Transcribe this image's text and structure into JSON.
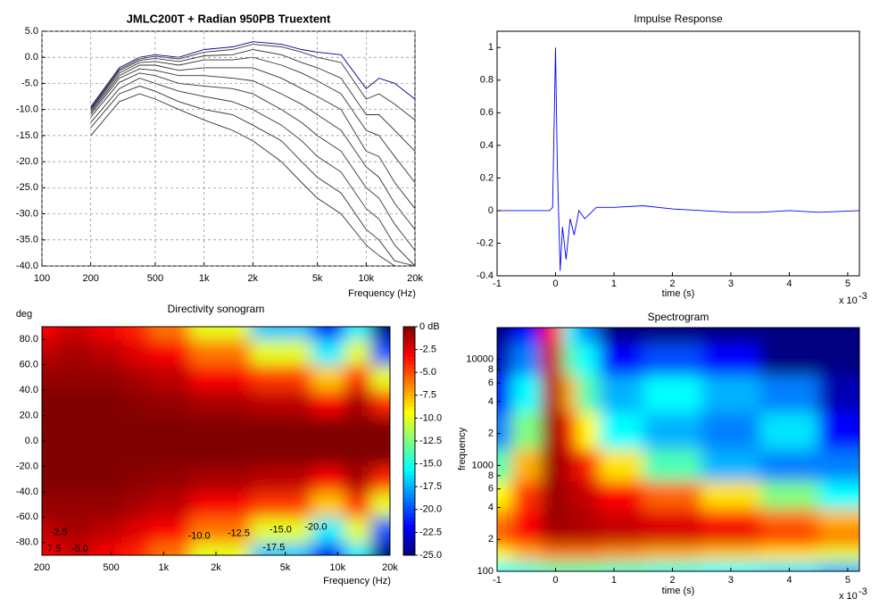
{
  "chart_data": [
    {
      "type": "line",
      "title": "JMLC200T + Radian 950PB Truextent",
      "x_label": "Frequency (Hz)",
      "xlog": true,
      "grid": true,
      "xlim": [
        100,
        20000
      ],
      "xticks": [
        100,
        200,
        500,
        {
          "value": 1000,
          "label": "1k"
        },
        {
          "value": 2000,
          "label": "2k"
        },
        {
          "value": 5000,
          "label": "5k"
        },
        {
          "value": 10000,
          "label": "10k"
        },
        {
          "value": 20000,
          "label": "20k"
        }
      ],
      "ylim": [
        -40,
        5
      ],
      "yticks": [
        {
          "value": 5,
          "label": "5.0"
        },
        {
          "value": 0,
          "label": "0.0"
        },
        {
          "value": -5,
          "label": "-5.0"
        },
        {
          "value": -10,
          "label": "-10.0"
        },
        {
          "value": -15,
          "label": "-15.0"
        },
        {
          "value": -20,
          "label": "-20.0"
        },
        {
          "value": -25,
          "label": "-25.0"
        },
        {
          "value": -30,
          "label": "-30.0"
        },
        {
          "value": -35,
          "label": "-35.0"
        },
        {
          "value": -40,
          "label": "-40.0"
        }
      ],
      "x": [
        200,
        300,
        400,
        500,
        700,
        1000,
        1500,
        2000,
        3000,
        4000,
        5000,
        7000,
        10000,
        12000,
        15000,
        20000
      ],
      "series": [
        {
          "color": "#00008b",
          "values": [
            -9.5,
            -2,
            0,
            0.5,
            0,
            1.5,
            2,
            3,
            2.5,
            1.5,
            1,
            0.5,
            -6,
            -4,
            -5,
            -8
          ]
        },
        {
          "color": "#333333",
          "values": [
            -9.8,
            -2.3,
            -0.3,
            0.2,
            -0.3,
            1,
            1.5,
            2.5,
            2,
            1,
            0,
            -1,
            -8,
            -7,
            -9,
            -12
          ]
        },
        {
          "color": "#333333",
          "values": [
            -10,
            -2.6,
            -0.6,
            -0.2,
            -0.8,
            0.3,
            0.5,
            1.5,
            0.5,
            -1,
            -2,
            -4,
            -11,
            -11,
            -14,
            -18
          ]
        },
        {
          "color": "#333333",
          "values": [
            -10.3,
            -3,
            -1,
            -0.8,
            -1.5,
            -0.5,
            -0.5,
            0,
            -1.5,
            -3,
            -4.5,
            -7,
            -14,
            -15,
            -19,
            -24
          ]
        },
        {
          "color": "#333333",
          "values": [
            -10.6,
            -3.5,
            -1.5,
            -1.5,
            -2.5,
            -2,
            -2,
            -2,
            -4,
            -6,
            -7.5,
            -10,
            -18,
            -19,
            -24,
            -29
          ]
        },
        {
          "color": "#333333",
          "values": [
            -11,
            -4,
            -2.2,
            -2.5,
            -3.5,
            -3.5,
            -4,
            -4.5,
            -7,
            -9,
            -11,
            -14,
            -21,
            -23,
            -28,
            -33
          ]
        },
        {
          "color": "#333333",
          "values": [
            -11.5,
            -4.8,
            -3,
            -3.5,
            -5,
            -5.5,
            -6,
            -7,
            -10,
            -12.5,
            -15,
            -18,
            -25,
            -27,
            -32,
            -37
          ]
        },
        {
          "color": "#333333",
          "values": [
            -12.5,
            -6,
            -4,
            -5,
            -6.5,
            -7.5,
            -8.5,
            -10,
            -13,
            -16,
            -19,
            -22,
            -29,
            -31,
            -36,
            -40
          ]
        },
        {
          "color": "#333333",
          "values": [
            -13.5,
            -7,
            -5.5,
            -6.5,
            -8.5,
            -10,
            -11,
            -13,
            -16,
            -20,
            -23,
            -26,
            -33,
            -35,
            -39,
            -40
          ]
        },
        {
          "color": "#333333",
          "values": [
            -15,
            -8.5,
            -7,
            -8,
            -10,
            -12,
            -14,
            -16,
            -20,
            -24,
            -27,
            -30,
            -36,
            -38,
            -40,
            -40
          ]
        }
      ]
    },
    {
      "type": "line",
      "title": "Impulse Response",
      "x_label": "time (s)",
      "x_note": "x 10",
      "x_note_exponent": "-3",
      "xlog": false,
      "grid": false,
      "xlim": [
        -1,
        5.2
      ],
      "xticks": [
        -1,
        0,
        1,
        2,
        3,
        4,
        5
      ],
      "ylim": [
        -0.4,
        1.1
      ],
      "yticks": [
        -0.4,
        -0.2,
        0,
        0.2,
        0.4,
        0.6,
        0.8,
        1
      ],
      "x": [
        -1,
        -0.1,
        -0.05,
        0,
        0.03,
        0.08,
        0.12,
        0.18,
        0.25,
        0.32,
        0.4,
        0.5,
        0.7,
        1,
        1.5,
        2,
        2.5,
        3,
        3.5,
        4,
        4.5,
        5.2
      ],
      "series": [
        {
          "color": "#0000ff",
          "values": [
            0,
            0,
            0.02,
            1,
            0.3,
            -0.37,
            -0.1,
            -0.3,
            -0.05,
            -0.15,
            0,
            -0.05,
            0.02,
            0.02,
            0.03,
            0.01,
            0,
            -0.01,
            -0.01,
            0,
            -0.01,
            0
          ]
        }
      ]
    },
    {
      "type": "heatmap",
      "title": "Directivity sonogram",
      "x_label": "Frequency (Hz)",
      "y_label": "deg",
      "xlog": true,
      "ylog": false,
      "colormap": "jet",
      "zlim": [
        -25,
        0
      ],
      "xlim": [
        200,
        20000
      ],
      "xticks": [
        200,
        500,
        {
          "value": 1000,
          "label": "1k"
        },
        {
          "value": 2000,
          "label": "2k"
        },
        {
          "value": 5000,
          "label": "5k"
        },
        {
          "value": 10000,
          "label": "10k"
        },
        {
          "value": 20000,
          "label": "20k"
        }
      ],
      "ylim": [
        -90,
        90
      ],
      "yreverse": false,
      "yticks": [
        {
          "value": -80,
          "label": "-80.0"
        },
        {
          "value": -60,
          "label": "-60.0"
        },
        {
          "value": -40,
          "label": "-40.0"
        },
        {
          "value": -20,
          "label": "-20.0"
        },
        {
          "value": 0,
          "label": "0.0"
        },
        {
          "value": 20,
          "label": "20.0"
        },
        {
          "value": 40,
          "label": "40.0"
        },
        {
          "value": 60,
          "label": "60.0"
        },
        {
          "value": 80,
          "label": "80.0"
        }
      ],
      "colorbar_ticks": [
        {
          "value": 0,
          "label": "0 dB"
        },
        -2.5,
        {
          "value": -5,
          "label": "-5.0"
        },
        -7.5,
        {
          "value": -10,
          "label": "-10.0"
        },
        -12.5,
        {
          "value": -15,
          "label": "-15.0"
        },
        -17.5,
        {
          "value": -20,
          "label": "-20.0"
        },
        -22.5,
        {
          "value": -25,
          "label": "-25.0"
        }
      ],
      "x": [
        200,
        300,
        500,
        700,
        1000,
        2000,
        5000,
        10000,
        12000,
        20000
      ],
      "y": [
        -90,
        -70,
        -50,
        -30,
        -10,
        10,
        30,
        50,
        70,
        90
      ],
      "z": [
        [
          -3,
          -2,
          -3,
          -4,
          -6,
          -10,
          -17,
          -22,
          -16,
          -25
        ],
        [
          -1.5,
          -1,
          -1.5,
          -2.5,
          -3,
          -6,
          -10,
          -16,
          -10,
          -20
        ],
        [
          -0.5,
          -0.5,
          -0.5,
          -1,
          -1.5,
          -3,
          -4.5,
          -8,
          -4,
          -10
        ],
        [
          0,
          0,
          0,
          -0.3,
          -0.5,
          -1,
          -1.5,
          -3,
          -1,
          -4
        ],
        [
          0,
          0,
          0,
          0,
          0,
          0,
          0,
          0,
          0,
          0
        ],
        [
          0,
          0,
          0,
          0,
          0,
          0,
          0,
          0,
          0,
          0
        ],
        [
          0,
          0,
          0,
          -0.3,
          -0.5,
          -1,
          -1.5,
          -3,
          -1,
          -4
        ],
        [
          -0.5,
          -0.5,
          -0.5,
          -1,
          -1.5,
          -3,
          -4.5,
          -8,
          -4,
          -10
        ],
        [
          -1.5,
          -1,
          -1.5,
          -2.5,
          -3,
          -6,
          -10,
          -16,
          -10,
          -20
        ],
        [
          -3,
          -2,
          -3,
          -4,
          -6,
          -10,
          -17,
          -22,
          -16,
          -25
        ]
      ],
      "contour_labels": [
        {
          "text": "-7.5",
          "x": 230,
          "y": -85
        },
        {
          "text": "-5.0",
          "x": 330,
          "y": -85
        },
        {
          "text": "-2.5",
          "x": 250,
          "y": -72
        },
        {
          "text": "-10.0",
          "x": 1600,
          "y": -75
        },
        {
          "text": "-12.5",
          "x": 2700,
          "y": -73
        },
        {
          "text": "-15.0",
          "x": 4700,
          "y": -70
        },
        {
          "text": "-17.5",
          "x": 4300,
          "y": -84
        },
        {
          "text": "-20.0",
          "x": 7500,
          "y": -68
        }
      ]
    },
    {
      "type": "heatmap",
      "title": "Spectrogram",
      "x_label": "time (s)",
      "y_label": "frequency",
      "x_note": "x 10",
      "x_note_exponent": "-3",
      "xlog": false,
      "ylog": true,
      "colormap": "jet",
      "zlim": [
        -40,
        0
      ],
      "xlim": [
        -1,
        5.2
      ],
      "xticks": [
        -1,
        0,
        1,
        2,
        3,
        4,
        5
      ],
      "ylim": [
        100,
        20000
      ],
      "yticks": [
        10000,
        {
          "value": 8000,
          "label": "8"
        },
        {
          "value": 6000,
          "label": "6"
        },
        {
          "value": 4000,
          "label": "4"
        },
        {
          "value": 2000,
          "label": "2"
        },
        1000,
        {
          "value": 800,
          "label": "8"
        },
        {
          "value": 600,
          "label": "6"
        },
        {
          "value": 400,
          "label": "4"
        },
        {
          "value": 200,
          "label": "2"
        },
        100
      ],
      "x": [
        -1,
        -0.5,
        0,
        0.25,
        0.5,
        1,
        2,
        3,
        4,
        5
      ],
      "y": [
        20000,
        10000,
        5000,
        2000,
        1000,
        500,
        300,
        200,
        150,
        100
      ],
      "z": [
        [
          -40,
          -35,
          -5,
          -25,
          -30,
          -40,
          -40,
          -40,
          -40,
          -40
        ],
        [
          -38,
          -30,
          -3,
          -22,
          -25,
          -35,
          -32,
          -35,
          -40,
          -40
        ],
        [
          -35,
          -25,
          -2,
          -12,
          -22,
          -28,
          -25,
          -28,
          -30,
          -38
        ],
        [
          -30,
          -20,
          -1,
          -6,
          -15,
          -25,
          -28,
          -30,
          -26,
          -35
        ],
        [
          -22,
          -12,
          -1,
          -3,
          -6,
          -14,
          -22,
          -28,
          -30,
          -30
        ],
        [
          -15,
          -7,
          -1,
          -2,
          -3,
          -5,
          -9,
          -14,
          -20,
          -25
        ],
        [
          -10,
          -5,
          -1,
          -1.5,
          -2,
          -3,
          -4,
          -6,
          -9,
          -12
        ],
        [
          -8,
          -5,
          -2,
          -2,
          -2,
          -2.5,
          -3,
          -4,
          -6,
          -9
        ],
        [
          -15,
          -12,
          -10,
          -10,
          -10,
          -11,
          -12,
          -13,
          -14,
          -16
        ],
        [
          -25,
          -24,
          -22,
          -22,
          -22,
          -23,
          -24,
          -25,
          -26,
          -28
        ]
      ]
    }
  ]
}
